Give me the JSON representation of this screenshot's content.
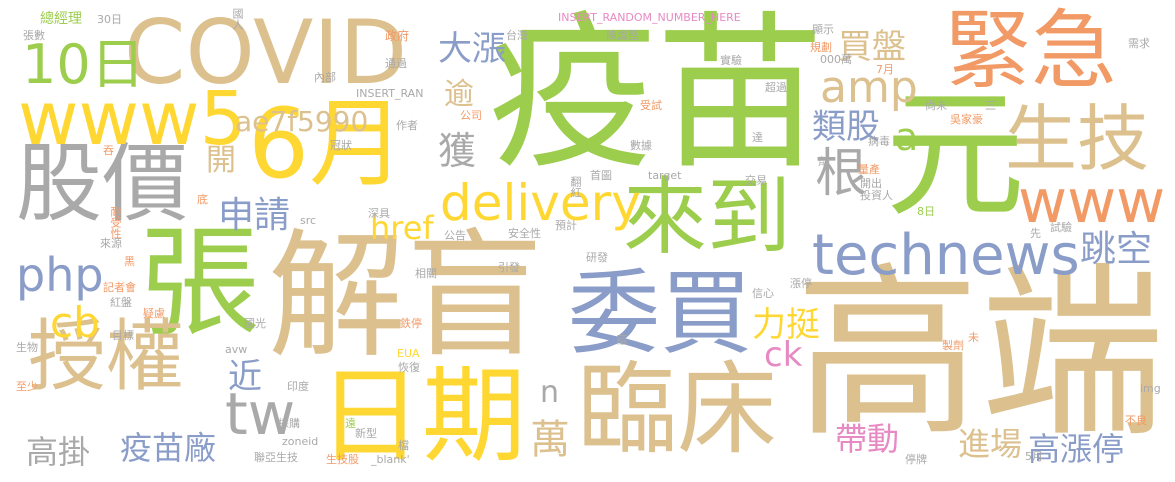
{
  "palette": {
    "tan": "#dcc18f",
    "green": "#9ccd4c",
    "orange": "#f29a66",
    "gray": "#a9a9a9",
    "blue": "#8a9cc8",
    "yellow": "#ffd733",
    "pink": "#e78ac3"
  },
  "words": [
    {
      "text": "疫苗",
      "color": "#9ccd4c"
    },
    {
      "text": "高端",
      "color": "#dcc18f"
    },
    {
      "text": "解盲",
      "color": "#dcc18f"
    },
    {
      "text": "張",
      "color": "#9ccd4c"
    },
    {
      "text": "COVID",
      "color": "#dcc18f"
    },
    {
      "text": "緊急",
      "color": "#f29a66"
    },
    {
      "text": "元",
      "color": "#9ccd4c"
    },
    {
      "text": "6月",
      "color": "#ffd733"
    },
    {
      "text": "股價",
      "color": "#a9a9a9"
    },
    {
      "text": "www5",
      "color": "#ffd733"
    },
    {
      "text": "授權",
      "color": "#dcc18f"
    },
    {
      "text": "委買",
      "color": "#8a9cc8"
    },
    {
      "text": "日期",
      "color": "#ffd733"
    },
    {
      "text": "臨床",
      "color": "#dcc18f"
    },
    {
      "text": "來到",
      "color": "#9ccd4c"
    },
    {
      "text": "生技",
      "color": "#dcc18f"
    },
    {
      "text": "www",
      "color": "#f29a66"
    },
    {
      "text": "technews",
      "color": "#8a9cc8"
    },
    {
      "text": "delivery",
      "color": "#ffd733"
    },
    {
      "text": "10日",
      "color": "#9ccd4c"
    },
    {
      "text": "amp",
      "color": "#dcc18f"
    },
    {
      "text": "ae7f5990",
      "color": "#dcc18f"
    },
    {
      "text": "tw",
      "color": "#a9a9a9"
    },
    {
      "text": "php",
      "color": "#8a9cc8"
    },
    {
      "text": "cb",
      "color": "#ffd733"
    },
    {
      "text": "大漲",
      "color": "#8a9cc8"
    },
    {
      "text": "買盤",
      "color": "#dcc18f"
    },
    {
      "text": "類股",
      "color": "#8a9cc8"
    },
    {
      "text": "a",
      "color": "#9ccd4c"
    },
    {
      "text": "根",
      "color": "#a9a9a9"
    },
    {
      "text": "跳空",
      "color": "#8a9cc8"
    },
    {
      "text": "申請",
      "color": "#8a9cc8"
    },
    {
      "text": "href",
      "color": "#ffd733"
    },
    {
      "text": "獲",
      "color": "#a9a9a9"
    },
    {
      "text": "逾",
      "color": "#dcc18f"
    },
    {
      "text": "開",
      "color": "#dcc18f"
    },
    {
      "text": "力挺",
      "color": "#ffd733"
    },
    {
      "text": "ck",
      "color": "#e78ac3"
    },
    {
      "text": "近",
      "color": "#8a9cc8"
    },
    {
      "text": "n",
      "color": "#a9a9a9"
    },
    {
      "text": "萬",
      "color": "#dcc18f"
    },
    {
      "text": "帶動",
      "color": "#e78ac3"
    },
    {
      "text": "進場",
      "color": "#dcc18f"
    },
    {
      "text": "高漲停",
      "color": "#8a9cc8"
    },
    {
      "text": "疫苗廠",
      "color": "#8a9cc8"
    },
    {
      "text": "高掛",
      "color": "#a9a9a9"
    },
    {
      "text": "總經理",
      "color": "#9ccd4c"
    },
    {
      "text": "30日",
      "color": "#a9a9a9"
    },
    {
      "text": "張數",
      "color": "#a9a9a9"
    },
    {
      "text": "國人",
      "color": "#a9a9a9"
    },
    {
      "text": "政府",
      "color": "#f29a66"
    },
    {
      "text": "內部",
      "color": "#a9a9a9"
    },
    {
      "text": "通過",
      "color": "#a9a9a9"
    },
    {
      "text": "INSERT_RANDOM_NUMBER_HERE",
      "color": "#e78ac3"
    },
    {
      "text": "台灣",
      "color": "#a9a9a9"
    },
    {
      "text": "陳燦堅",
      "color": "#a9a9a9"
    },
    {
      "text": "INSERT_RAN",
      "color": "#a9a9a9"
    },
    {
      "text": "實驗",
      "color": "#a9a9a9"
    },
    {
      "text": "超過",
      "color": "#a9a9a9"
    },
    {
      "text": "顯示",
      "color": "#a9a9a9"
    },
    {
      "text": "規劃",
      "color": "#f29a66"
    },
    {
      "text": "000萬",
      "color": "#a9a9a9"
    },
    {
      "text": "7月",
      "color": "#f29a66"
    },
    {
      "text": "需求",
      "color": "#a9a9a9"
    },
    {
      "text": "冠狀",
      "color": "#a9a9a9"
    },
    {
      "text": "作者",
      "color": "#a9a9a9"
    },
    {
      "text": "公司",
      "color": "#f29a66"
    },
    {
      "text": "受試",
      "color": "#f29a66"
    },
    {
      "text": "數據",
      "color": "#a9a9a9"
    },
    {
      "text": "達",
      "color": "#a9a9a9"
    },
    {
      "text": "尚未",
      "color": "#a9a9a9"
    },
    {
      "text": "三",
      "color": "#a9a9a9"
    },
    {
      "text": "吳家豪",
      "color": "#f29a66"
    },
    {
      "text": "病毒",
      "color": "#a9a9a9"
    },
    {
      "text": "劑",
      "color": "#a9a9a9"
    },
    {
      "text": "吞",
      "color": "#f29a66"
    },
    {
      "text": "首圖",
      "color": "#a9a9a9"
    },
    {
      "text": "翻紅",
      "color": "#a9a9a9"
    },
    {
      "text": "target",
      "color": "#a9a9a9"
    },
    {
      "text": "交易",
      "color": "#a9a9a9"
    },
    {
      "text": "量產",
      "color": "#f29a66"
    },
    {
      "text": "開出",
      "color": "#a9a9a9"
    },
    {
      "text": "投資人",
      "color": "#a9a9a9"
    },
    {
      "text": "8日",
      "color": "#9ccd4c"
    },
    {
      "text": "底",
      "color": "#f29a66"
    },
    {
      "text": "深具",
      "color": "#a9a9a9"
    },
    {
      "text": "src",
      "color": "#a9a9a9"
    },
    {
      "text": "預計",
      "color": "#a9a9a9"
    },
    {
      "text": "安全性",
      "color": "#a9a9a9"
    },
    {
      "text": "公告",
      "color": "#a9a9a9"
    },
    {
      "text": "先",
      "color": "#a9a9a9"
    },
    {
      "text": "試驗",
      "color": "#a9a9a9"
    },
    {
      "text": "耐受性",
      "color": "#f29a66"
    },
    {
      "text": "來源",
      "color": "#a9a9a9"
    },
    {
      "text": "相關",
      "color": "#a9a9a9"
    },
    {
      "text": "引發",
      "color": "#a9a9a9"
    },
    {
      "text": "研發",
      "color": "#a9a9a9"
    },
    {
      "text": "黑",
      "color": "#f29a66"
    },
    {
      "text": "記者會",
      "color": "#f29a66"
    },
    {
      "text": "紅盤",
      "color": "#a9a9a9"
    },
    {
      "text": "疑慮",
      "color": "#f29a66"
    },
    {
      "text": "信心",
      "color": "#a9a9a9"
    },
    {
      "text": "漲停",
      "color": "#a9a9a9"
    },
    {
      "text": "國光",
      "color": "#a9a9a9"
    },
    {
      "text": "鉄停",
      "color": "#f29a66"
    },
    {
      "text": "目標",
      "color": "#a9a9a9"
    },
    {
      "text": "生物",
      "color": "#a9a9a9"
    },
    {
      "text": "avw",
      "color": "#a9a9a9"
    },
    {
      "text": "藴",
      "color": "#a9a9a9"
    },
    {
      "text": "未",
      "color": "#f29a66"
    },
    {
      "text": "製劑",
      "color": "#f29a66"
    },
    {
      "text": "EUA",
      "color": "#ffd733"
    },
    {
      "text": "恢復",
      "color": "#a9a9a9"
    },
    {
      "text": "至少",
      "color": "#f29a66"
    },
    {
      "text": "印度",
      "color": "#a9a9a9"
    },
    {
      "text": "img",
      "color": "#a9a9a9"
    },
    {
      "text": "採購",
      "color": "#a9a9a9"
    },
    {
      "text": "遠",
      "color": "#9ccd4c"
    },
    {
      "text": "新型",
      "color": "#a9a9a9"
    },
    {
      "text": "zoneid",
      "color": "#a9a9a9"
    },
    {
      "text": "不良",
      "color": "#f29a66"
    },
    {
      "text": "檔",
      "color": "#a9a9a9"
    },
    {
      "text": "聯亞生技",
      "color": "#a9a9a9"
    },
    {
      "text": "生技股",
      "color": "#f29a66"
    },
    {
      "text": "_blank'",
      "color": "#a9a9a9"
    },
    {
      "text": "停牌",
      "color": "#a9a9a9"
    },
    {
      "text": "5月",
      "color": "#a9a9a9"
    }
  ]
}
